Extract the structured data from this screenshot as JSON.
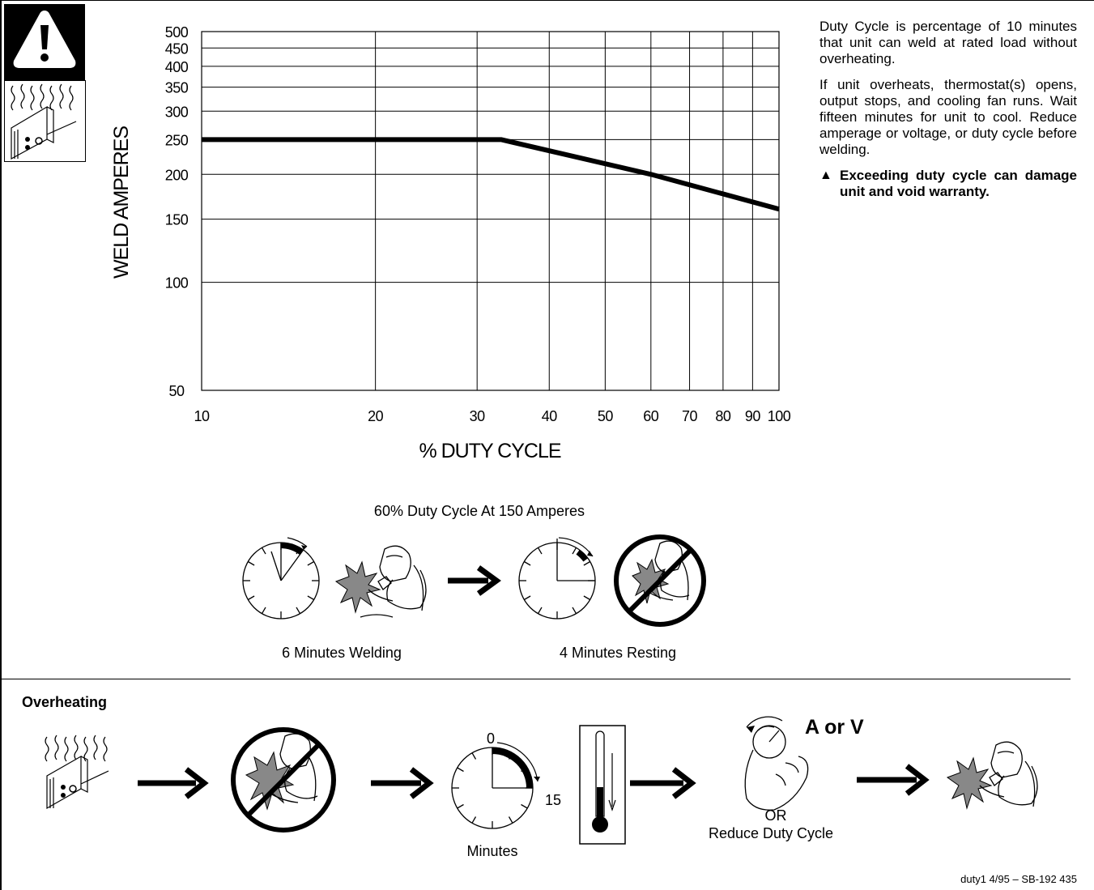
{
  "chart_data": {
    "type": "line",
    "xlabel": "% DUTY CYCLE",
    "ylabel": "WELD AMPERES",
    "x_scale": "log",
    "y_scale": "log",
    "xlim": [
      10,
      100
    ],
    "ylim": [
      50,
      500
    ],
    "x_ticks": [
      10,
      20,
      30,
      40,
      50,
      60,
      70,
      80,
      90,
      100
    ],
    "y_ticks": [
      50,
      100,
      150,
      200,
      250,
      300,
      350,
      400,
      450,
      500
    ],
    "grid": true,
    "series": [
      {
        "x": [
          10,
          33,
          60,
          100
        ],
        "y": [
          250,
          250,
          200,
          160
        ]
      }
    ]
  },
  "description": {
    "paragraph1": "Duty Cycle is percentage of 10 minutes that unit can weld at rated load without overheating.",
    "paragraph2": "If unit overheats, thermostat(s) opens, output stops, and cooling fan runs. Wait fifteen minutes for unit to cool. Reduce amperage or voltage, or duty cycle before welding.",
    "warning_symbol": "▲",
    "warning": "Exceeding duty cycle can damage unit and void warranty."
  },
  "cycle_example": {
    "title": "60% Duty Cycle At 150 Amperes",
    "welding_label": "6 Minutes Welding",
    "resting_label": "4 Minutes Resting"
  },
  "overheating": {
    "title": "Overheating",
    "timer_start": "0",
    "timer_end": "15",
    "timer_label": "Minutes",
    "knob_label": "A or V",
    "or_label": "OR",
    "reduce_label": "Reduce Duty Cycle"
  },
  "footer": "duty1 4/95 – SB-192 435",
  "icons": {
    "warning": "exclamation-triangle-icon",
    "hot_unit": "hot-unit-icon",
    "clock": "clock-icon",
    "welder": "welder-icon",
    "no_welding": "no-welding-icon",
    "arrow": "right-arrow-icon",
    "thermometer": "thermometer-icon",
    "knob": "adjust-knob-icon"
  }
}
